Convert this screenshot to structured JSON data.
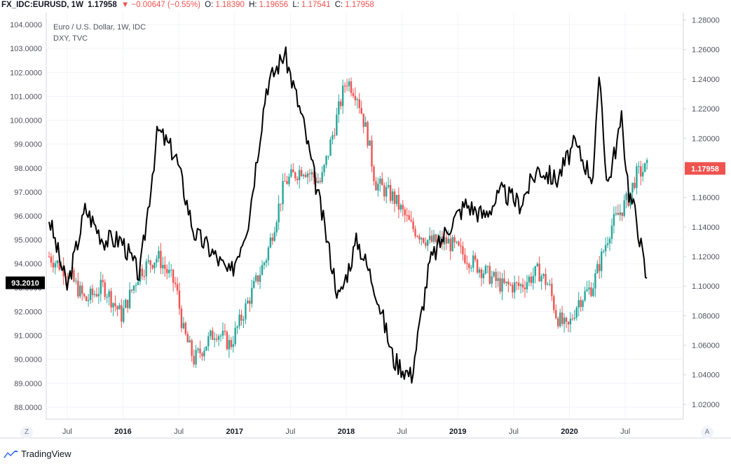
{
  "header": {
    "symbol": "FX_IDC:EURUSD, 1W",
    "last": "1.17958",
    "change": "▼ −0.00647 (−0.55%)",
    "open_label": "O:",
    "open": "1.18390",
    "high_label": "H:",
    "high": "1.19656",
    "low_label": "L:",
    "low": "1.17541",
    "close_label": "C:",
    "close": "1.17958"
  },
  "legend": {
    "series1": "Euro / U.S. Dollar, 1W, IDC",
    "series2": "DXY, TVC"
  },
  "footer": {
    "brand": "TradingView",
    "z_button": "Z",
    "a_button": "A"
  },
  "colors": {
    "up": "#26a69a",
    "down": "#ef5350",
    "dxy": "#000000",
    "grid": "#f0f3fa",
    "badge_dxy": "#000000",
    "badge_eur": "#ef5350"
  },
  "chart_data": {
    "type": "line",
    "title": "Euro / U.S. Dollar, 1W, IDC",
    "series": [
      {
        "name": "EURUSD",
        "points": [
          [
            0,
            1.12
          ],
          [
            0.25,
            1.11
          ],
          [
            0.5,
            1.09
          ],
          [
            0.75,
            1.1
          ],
          [
            1.0,
            1.08
          ],
          [
            1.25,
            1.11
          ],
          [
            1.5,
            1.12
          ],
          [
            1.75,
            1.1
          ],
          [
            1.85,
            1.07
          ],
          [
            2.0,
            1.05
          ],
          [
            2.15,
            1.06
          ],
          [
            2.3,
            1.07
          ],
          [
            2.5,
            1.06
          ],
          [
            2.75,
            1.09
          ],
          [
            3.0,
            1.12
          ],
          [
            3.25,
            1.17
          ],
          [
            3.5,
            1.18
          ],
          [
            3.75,
            1.17
          ],
          [
            4.0,
            1.22
          ],
          [
            4.1,
            1.24
          ],
          [
            4.25,
            1.23
          ],
          [
            4.4,
            1.2
          ],
          [
            4.5,
            1.17
          ],
          [
            4.75,
            1.16
          ],
          [
            5.0,
            1.14
          ],
          [
            5.25,
            1.13
          ],
          [
            5.5,
            1.13
          ],
          [
            5.75,
            1.12
          ],
          [
            6.0,
            1.11
          ],
          [
            6.25,
            1.1
          ],
          [
            6.5,
            1.1
          ],
          [
            6.75,
            1.11
          ],
          [
            6.9,
            1.1
          ],
          [
            7.0,
            1.08
          ],
          [
            7.15,
            1.07
          ],
          [
            7.3,
            1.09
          ],
          [
            7.5,
            1.1
          ],
          [
            7.75,
            1.14
          ],
          [
            8.0,
            1.16
          ],
          [
            8.1,
            1.175
          ],
          [
            8.25,
            1.18
          ]
        ]
      },
      {
        "name": "DXY",
        "points": [
          [
            0,
            95.9
          ],
          [
            0.25,
            93.0
          ],
          [
            0.5,
            96.3
          ],
          [
            0.75,
            95.0
          ],
          [
            1.0,
            95.0
          ],
          [
            1.25,
            93.5
          ],
          [
            1.5,
            99.6
          ],
          [
            1.75,
            98.5
          ],
          [
            2.0,
            95.3
          ],
          [
            2.25,
            94.5
          ],
          [
            2.5,
            93.5
          ],
          [
            2.75,
            95.8
          ],
          [
            3.0,
            101.4
          ],
          [
            3.25,
            102.8
          ],
          [
            3.5,
            100.0
          ],
          [
            3.75,
            96.3
          ],
          [
            4.0,
            92.5
          ],
          [
            4.25,
            95.0
          ],
          [
            4.5,
            93.0
          ],
          [
            4.75,
            90.0
          ],
          [
            5.0,
            89.3
          ],
          [
            5.25,
            94.0
          ],
          [
            5.5,
            95.5
          ],
          [
            5.75,
            96.5
          ],
          [
            6.0,
            96.0
          ],
          [
            6.25,
            97.0
          ],
          [
            6.5,
            96.5
          ],
          [
            6.75,
            98.0
          ],
          [
            7.0,
            97.5
          ],
          [
            7.25,
            99.0
          ],
          [
            7.5,
            97.6
          ],
          [
            7.6,
            101.9
          ],
          [
            7.7,
            97.2
          ],
          [
            7.9,
            100.0
          ],
          [
            8.0,
            97.0
          ],
          [
            8.1,
            96.0
          ],
          [
            8.25,
            93.2
          ]
        ]
      }
    ],
    "x_ticks": [
      "Jul",
      "2016",
      "Jul",
      "2017",
      "Jul",
      "2018",
      "Jul",
      "2019",
      "Jul",
      "2020",
      "Jul"
    ],
    "x_ticks_year": [
      false,
      true,
      false,
      true,
      false,
      true,
      false,
      true,
      false,
      true,
      false
    ],
    "y_left_ticks": [
      "104.0000",
      "103.0000",
      "102.0000",
      "101.0000",
      "100.0000",
      "99.0000",
      "98.0000",
      "97.0000",
      "96.0000",
      "95.0000",
      "94.0000",
      "93.0000",
      "92.0000",
      "91.0000",
      "90.0000",
      "89.0000",
      "88.0000"
    ],
    "y_right_ticks": [
      "1.28000",
      "1.26000",
      "1.24000",
      "1.22000",
      "1.20000",
      "1.18000",
      "1.16000",
      "1.14000",
      "1.12000",
      "1.10000",
      "1.08000",
      "1.06000",
      "1.04000",
      "1.02000"
    ],
    "y_left_range": [
      87.5,
      104.5
    ],
    "y_right_range": [
      1.01,
      1.285
    ],
    "last_dxy_badge": "93.2010",
    "last_eur_badge": "1.17958"
  }
}
